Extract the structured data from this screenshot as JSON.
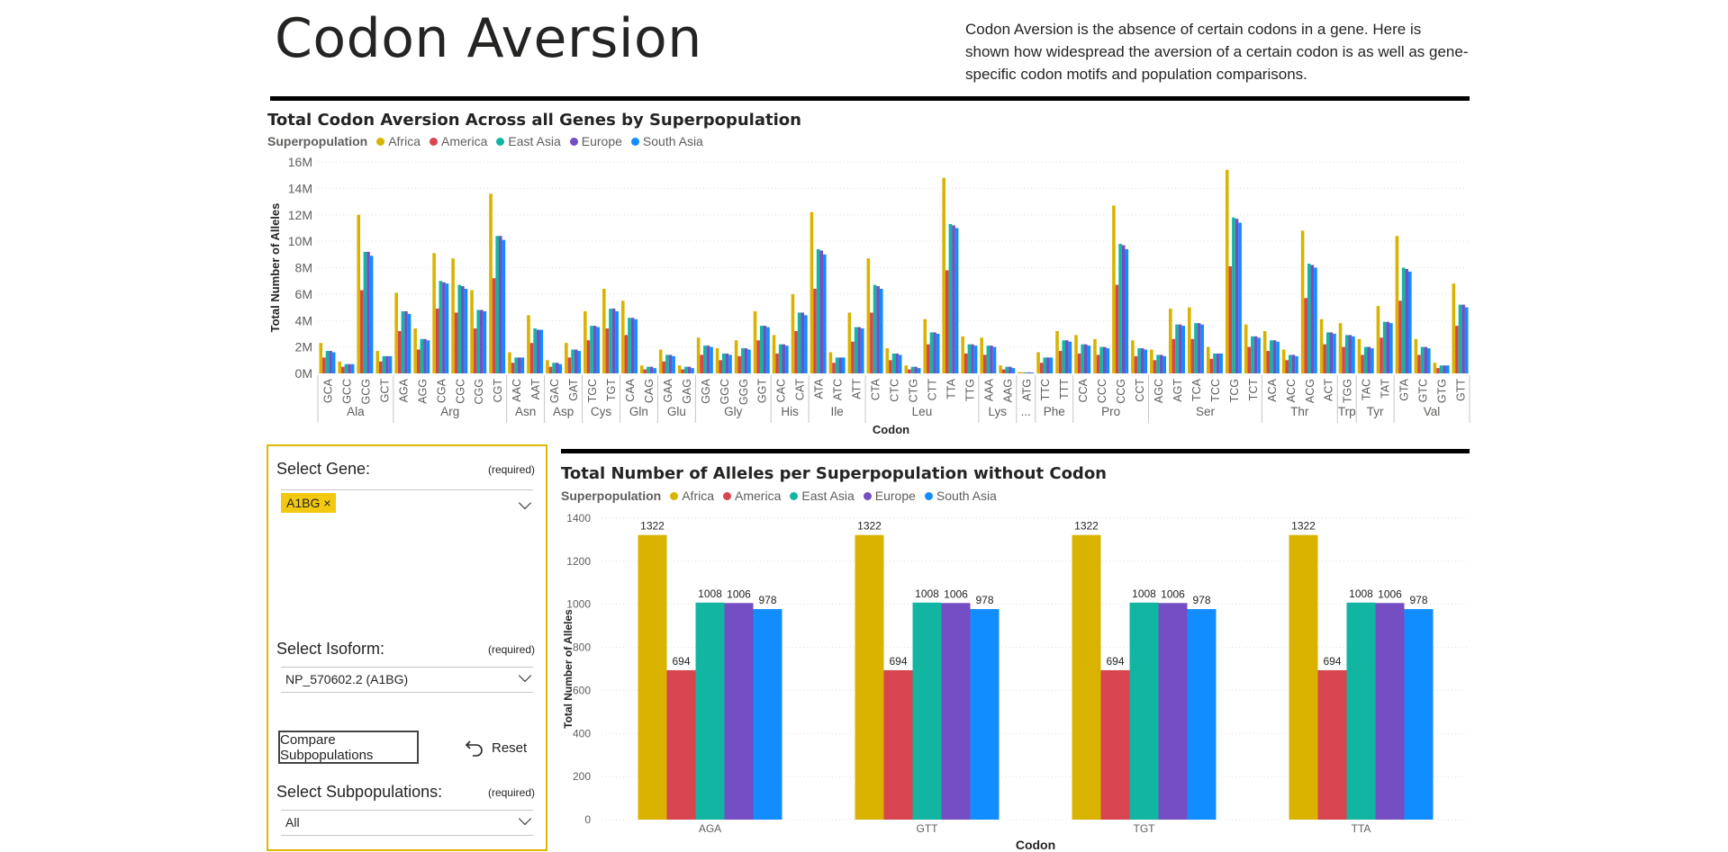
{
  "page": {
    "title": "Codon Aversion",
    "description": "Codon Aversion is the absence of certain codons in a gene. Here is shown how widespread the aversion of a certain codon is as well as gene-specific codon motifs and population comparisons."
  },
  "colors": {
    "Africa": "#d9b300",
    "America": "#d64550",
    "East Asia": "#12b5a1",
    "Europe": "#744ec2",
    "South Asia": "#118dff",
    "panel_border": "#e2b700",
    "tag_bg": "#f2c811"
  },
  "legend": {
    "title": "Superpopulation",
    "items": [
      "Africa",
      "America",
      "East Asia",
      "Europe",
      "South Asia"
    ]
  },
  "filters": {
    "gene": {
      "label": "Select Gene:",
      "required": "(required)",
      "selected": "A1BG",
      "remove_icon": "×"
    },
    "isoform": {
      "label": "Select Isoform:",
      "required": "(required)",
      "value": "NP_570602.2 (A1BG)"
    },
    "compare_button": "Compare Subpopulations",
    "reset_button": "Reset",
    "subpop": {
      "label": "Select Subpopulations:",
      "required": "(required)",
      "value": "All"
    }
  },
  "chart_data": [
    {
      "type": "bar",
      "title": "Total Codon Aversion Across all Genes by Superpopulation",
      "xlabel": "Codon",
      "ylabel": "Total Number of Alleles",
      "ylim": [
        0,
        16000000
      ],
      "yticks": [
        "0M",
        "2M",
        "4M",
        "6M",
        "8M",
        "10M",
        "12M",
        "14M",
        "16M"
      ],
      "grid": true,
      "legend_position": "top-left",
      "groups": [
        {
          "name": "Ala",
          "codons": [
            "GCA",
            "GCC",
            "GCG",
            "GCT"
          ]
        },
        {
          "name": "Arg",
          "codons": [
            "AGA",
            "AGG",
            "CGA",
            "CGC",
            "CGG",
            "CGT"
          ]
        },
        {
          "name": "Asn",
          "codons": [
            "AAC",
            "AAT"
          ]
        },
        {
          "name": "Asp",
          "codons": [
            "GAC",
            "GAT"
          ]
        },
        {
          "name": "Cys",
          "codons": [
            "TGC",
            "TGT"
          ]
        },
        {
          "name": "Gln",
          "codons": [
            "CAA",
            "CAG"
          ]
        },
        {
          "name": "Glu",
          "codons": [
            "GAA",
            "GAG"
          ]
        },
        {
          "name": "Gly",
          "codons": [
            "GGA",
            "GGC",
            "GGG",
            "GGT"
          ]
        },
        {
          "name": "His",
          "codons": [
            "CAC",
            "CAT"
          ]
        },
        {
          "name": "Ile",
          "codons": [
            "ATA",
            "ATC",
            "ATT"
          ]
        },
        {
          "name": "Leu",
          "codons": [
            "CTA",
            "CTC",
            "CTG",
            "CTT",
            "TTA",
            "TTG"
          ]
        },
        {
          "name": "Lys",
          "codons": [
            "AAA",
            "AAG"
          ]
        },
        {
          "name": "...",
          "codons": [
            "ATG"
          ]
        },
        {
          "name": "Phe",
          "codons": [
            "TTC",
            "TTT"
          ]
        },
        {
          "name": "Pro",
          "codons": [
            "CCA",
            "CCC",
            "CCG",
            "CCT"
          ]
        },
        {
          "name": "Ser",
          "codons": [
            "AGC",
            "AGT",
            "TCA",
            "TCC",
            "TCG",
            "TCT"
          ]
        },
        {
          "name": "Thr",
          "codons": [
            "ACA",
            "ACC",
            "ACG",
            "ACT"
          ]
        },
        {
          "name": "Trp",
          "codons": [
            "TGG"
          ]
        },
        {
          "name": "Tyr",
          "codons": [
            "TAC",
            "TAT"
          ]
        },
        {
          "name": "Val",
          "codons": [
            "GTA",
            "GTC",
            "GTG",
            "GTT"
          ]
        }
      ],
      "categories": [
        "GCA",
        "GCC",
        "GCG",
        "GCT",
        "AGA",
        "AGG",
        "CGA",
        "CGC",
        "CGG",
        "CGT",
        "AAC",
        "AAT",
        "GAC",
        "GAT",
        "TGC",
        "TGT",
        "CAA",
        "CAG",
        "GAA",
        "GAG",
        "GGA",
        "GGC",
        "GGG",
        "GGT",
        "CAC",
        "CAT",
        "ATA",
        "ATC",
        "ATT",
        "CTA",
        "CTC",
        "CTG",
        "CTT",
        "TTA",
        "TTG",
        "AAA",
        "AAG",
        "ATG",
        "TTC",
        "TTT",
        "CCA",
        "CCC",
        "CCG",
        "CCT",
        "AGC",
        "AGT",
        "TCA",
        "TCC",
        "TCG",
        "TCT",
        "ACA",
        "ACC",
        "ACG",
        "ACT",
        "TGG",
        "TAC",
        "TAT",
        "GTA",
        "GTC",
        "GTG",
        "GTT"
      ],
      "series": [
        {
          "name": "Africa",
          "values": [
            2.3,
            0.9,
            12.0,
            1.7,
            6.1,
            3.4,
            9.1,
            8.7,
            6.3,
            13.6,
            1.6,
            4.4,
            1.0,
            2.3,
            4.7,
            6.4,
            5.5,
            0.6,
            1.8,
            0.6,
            2.7,
            1.9,
            2.5,
            4.7,
            2.9,
            6.0,
            12.2,
            1.6,
            4.6,
            8.7,
            1.9,
            0.6,
            4.1,
            14.8,
            2.8,
            2.7,
            0.6,
            0.1,
            1.6,
            3.2,
            2.9,
            2.6,
            12.7,
            2.5,
            1.8,
            4.9,
            5.0,
            2.0,
            15.4,
            3.7,
            3.2,
            1.8,
            10.8,
            4.1,
            3.8,
            2.6,
            5.1,
            10.4,
            2.6,
            0.8,
            6.8
          ]
        },
        {
          "name": "America",
          "values": [
            1.2,
            0.5,
            6.3,
            0.9,
            3.2,
            1.8,
            4.9,
            4.6,
            3.4,
            7.2,
            0.8,
            2.3,
            0.5,
            1.2,
            2.5,
            3.4,
            2.9,
            0.3,
            0.9,
            0.3,
            1.4,
            1.0,
            1.3,
            2.5,
            1.5,
            3.2,
            6.4,
            0.8,
            2.4,
            4.6,
            1.0,
            0.3,
            2.2,
            7.8,
            1.5,
            1.4,
            0.3,
            0.05,
            0.8,
            1.7,
            1.5,
            1.4,
            6.7,
            1.3,
            1.0,
            2.6,
            2.6,
            1.1,
            8.1,
            2.0,
            1.7,
            1.0,
            5.7,
            2.2,
            2.0,
            1.4,
            2.7,
            5.5,
            1.4,
            0.4,
            3.6
          ]
        },
        {
          "name": "East Asia",
          "values": [
            1.7,
            0.7,
            9.2,
            1.3,
            4.7,
            2.6,
            7.0,
            6.7,
            4.8,
            10.4,
            1.2,
            3.4,
            0.8,
            1.8,
            3.6,
            4.9,
            4.2,
            0.5,
            1.4,
            0.5,
            2.1,
            1.5,
            1.9,
            3.6,
            2.2,
            4.6,
            9.4,
            1.2,
            3.5,
            6.7,
            1.5,
            0.5,
            3.1,
            11.3,
            2.2,
            2.1,
            0.5,
            0.08,
            1.2,
            2.5,
            2.2,
            2.0,
            9.8,
            1.9,
            1.4,
            3.7,
            3.8,
            1.5,
            11.8,
            2.8,
            2.5,
            1.4,
            8.3,
            3.1,
            2.9,
            2.0,
            3.9,
            8.0,
            2.0,
            0.6,
            5.2
          ]
        },
        {
          "name": "Europe",
          "values": [
            1.7,
            0.7,
            9.2,
            1.3,
            4.7,
            2.6,
            6.9,
            6.6,
            4.8,
            10.4,
            1.2,
            3.3,
            0.8,
            1.8,
            3.6,
            4.9,
            4.2,
            0.5,
            1.4,
            0.5,
            2.1,
            1.5,
            1.9,
            3.6,
            2.2,
            4.6,
            9.3,
            1.2,
            3.5,
            6.6,
            1.5,
            0.5,
            3.1,
            11.2,
            2.2,
            2.1,
            0.5,
            0.08,
            1.2,
            2.5,
            2.2,
            2.0,
            9.7,
            1.9,
            1.4,
            3.7,
            3.8,
            1.5,
            11.7,
            2.8,
            2.5,
            1.4,
            8.2,
            3.1,
            2.9,
            2.0,
            3.9,
            7.9,
            2.0,
            0.6,
            5.2
          ]
        },
        {
          "name": "South Asia",
          "values": [
            1.6,
            0.7,
            8.9,
            1.3,
            4.5,
            2.5,
            6.8,
            6.4,
            4.7,
            10.1,
            1.2,
            3.3,
            0.7,
            1.7,
            3.5,
            4.7,
            4.1,
            0.4,
            1.3,
            0.4,
            2.0,
            1.4,
            1.8,
            3.5,
            2.1,
            4.4,
            9.0,
            1.2,
            3.4,
            6.4,
            1.4,
            0.4,
            3.0,
            11.0,
            2.1,
            2.0,
            0.4,
            0.07,
            1.2,
            2.4,
            2.1,
            1.9,
            9.4,
            1.8,
            1.3,
            3.6,
            3.7,
            1.5,
            11.4,
            2.7,
            2.4,
            1.3,
            8.0,
            3.0,
            2.8,
            1.9,
            3.8,
            7.7,
            1.9,
            0.6,
            5.0
          ]
        }
      ],
      "value_unit": "M"
    },
    {
      "type": "bar",
      "title": "Total Number of Alleles per Superpopulation without Codon",
      "xlabel": "Codon",
      "ylabel": "Total Number of Alleles",
      "ylim": [
        0,
        1400
      ],
      "yticks": [
        "0",
        "200",
        "400",
        "600",
        "800",
        "1000",
        "1200",
        "1400"
      ],
      "grid": true,
      "legend_position": "top-left",
      "categories": [
        "AGA",
        "GTT",
        "TGT",
        "TTA"
      ],
      "series": [
        {
          "name": "Africa",
          "values": [
            1322,
            1322,
            1322,
            1322
          ]
        },
        {
          "name": "America",
          "values": [
            694,
            694,
            694,
            694
          ]
        },
        {
          "name": "East Asia",
          "values": [
            1008,
            1008,
            1008,
            1008
          ]
        },
        {
          "name": "Europe",
          "values": [
            1006,
            1006,
            1006,
            1006
          ]
        },
        {
          "name": "South Asia",
          "values": [
            978,
            978,
            978,
            978
          ]
        }
      ]
    }
  ]
}
